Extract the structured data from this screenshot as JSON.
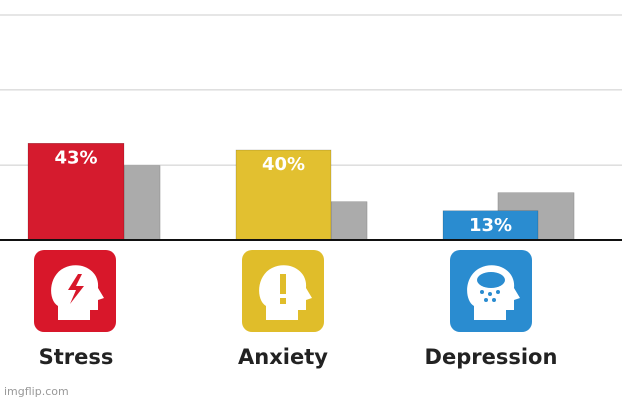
{
  "chart_data": {
    "type": "bar",
    "categories": [
      "Stress",
      "Anxiety",
      "Depression"
    ],
    "series": [
      {
        "colors": [
          "#d51b2e",
          "#e2c030",
          "#2a8cd0"
        ],
        "values": [
          43,
          40,
          13
        ],
        "value_labels": [
          "43%",
          "40%",
          "13%"
        ]
      },
      {
        "color": "#ababab",
        "values": [
          33,
          17,
          21
        ]
      }
    ],
    "ylim": [
      0,
      100
    ],
    "yticks": [
      0,
      33.3,
      66.7,
      100
    ],
    "grid": true,
    "watermark": "imgflip.com"
  }
}
